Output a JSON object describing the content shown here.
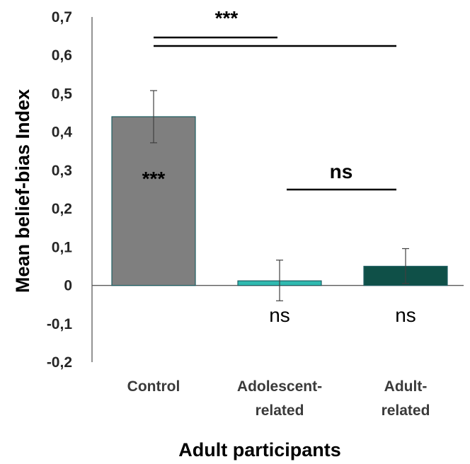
{
  "chart_data": {
    "type": "bar",
    "title": "",
    "xlabel": "Adult participants",
    "ylabel": "Mean belief-bias Index",
    "ylim": [
      -0.2,
      0.7
    ],
    "yticks": [
      "0,7",
      "0,6",
      "0,5",
      "0,4",
      "0,3",
      "0,2",
      "0,1",
      "0",
      "-0,1",
      "-0,2"
    ],
    "ytick_values": [
      0.7,
      0.6,
      0.5,
      0.4,
      0.3,
      0.2,
      0.1,
      0,
      -0.1,
      -0.2
    ],
    "grid": false,
    "categories": [
      {
        "line1": "Control",
        "line2": ""
      },
      {
        "line1": "Adolescent-",
        "line2": "related"
      },
      {
        "line1": "Adult-",
        "line2": "related"
      }
    ],
    "values": [
      0.44,
      0.012,
      0.05
    ],
    "error_low": [
      0.372,
      -0.04,
      0.005
    ],
    "error_high": [
      0.508,
      0.066,
      0.096
    ],
    "colors": [
      "#7f7f7f",
      "#2fbab0",
      "#0f5048"
    ],
    "edge_color": "#1f5f63",
    "bar_labels": [
      {
        "text": "***",
        "color": "#e8e8e8"
      },
      {
        "text": "ns",
        "color": "#000000"
      },
      {
        "text": "ns",
        "color": "#000000"
      }
    ],
    "comparisons": [
      {
        "from": 0,
        "to": 1,
        "label": "***"
      },
      {
        "from": 0,
        "to": 2,
        "label": ""
      },
      {
        "from": 1,
        "to": 2,
        "label": "ns"
      }
    ]
  }
}
